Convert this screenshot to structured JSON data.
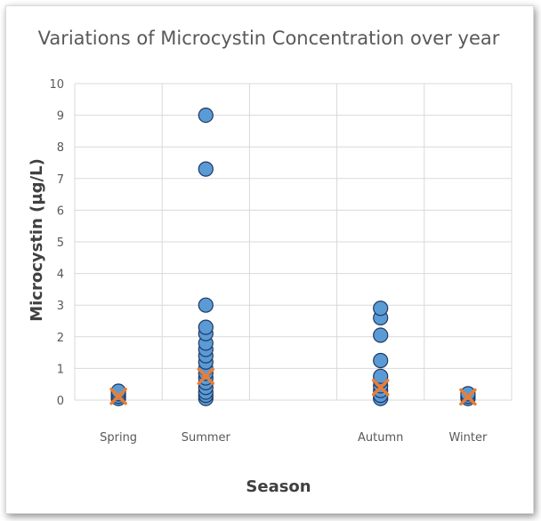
{
  "chart_data": {
    "type": "scatter",
    "title": "Variations of Microcystin Concentration over year",
    "xlabel": "Season",
    "ylabel": "Microcystin (µg/L)",
    "categories": [
      "Spring",
      "Summer",
      "Autumn",
      "Winter"
    ],
    "category_x": [
      1,
      2,
      4,
      5
    ],
    "xlim": [
      0.5,
      5.5
    ],
    "ylim": [
      0,
      10
    ],
    "yticks": [
      0,
      1,
      2,
      3,
      4,
      5,
      6,
      7,
      8,
      9,
      10
    ],
    "grid": true,
    "legend": "none",
    "series": [
      {
        "marker": "circle",
        "color": "#5b9bd5",
        "points": [
          {
            "x": 1,
            "y": 0.05
          },
          {
            "x": 1,
            "y": 0.12
          },
          {
            "x": 1,
            "y": 0.2
          },
          {
            "x": 1,
            "y": 0.28
          },
          {
            "x": 2,
            "y": 0.05
          },
          {
            "x": 2,
            "y": 0.15
          },
          {
            "x": 2,
            "y": 0.25
          },
          {
            "x": 2,
            "y": 0.4
          },
          {
            "x": 2,
            "y": 0.55
          },
          {
            "x": 2,
            "y": 0.7
          },
          {
            "x": 2,
            "y": 0.85
          },
          {
            "x": 2,
            "y": 1.0
          },
          {
            "x": 2,
            "y": 1.2
          },
          {
            "x": 2,
            "y": 1.4
          },
          {
            "x": 2,
            "y": 1.6
          },
          {
            "x": 2,
            "y": 1.8
          },
          {
            "x": 2,
            "y": 2.1
          },
          {
            "x": 2,
            "y": 2.3
          },
          {
            "x": 2,
            "y": 3.0
          },
          {
            "x": 2,
            "y": 7.3
          },
          {
            "x": 2,
            "y": 9.0
          },
          {
            "x": 4,
            "y": 0.05
          },
          {
            "x": 4,
            "y": 0.15
          },
          {
            "x": 4,
            "y": 0.3
          },
          {
            "x": 4,
            "y": 0.45
          },
          {
            "x": 4,
            "y": 0.6
          },
          {
            "x": 4,
            "y": 0.75
          },
          {
            "x": 4,
            "y": 1.25
          },
          {
            "x": 4,
            "y": 2.05
          },
          {
            "x": 4,
            "y": 2.6
          },
          {
            "x": 4,
            "y": 2.9
          },
          {
            "x": 5,
            "y": 0.05
          },
          {
            "x": 5,
            "y": 0.12
          },
          {
            "x": 5,
            "y": 0.2
          }
        ]
      },
      {
        "marker": "x",
        "color": "#ed7d31",
        "points": [
          {
            "x": 1,
            "y": 0.12
          },
          {
            "x": 2,
            "y": 0.75
          },
          {
            "x": 4,
            "y": 0.4
          },
          {
            "x": 5,
            "y": 0.1
          }
        ]
      }
    ]
  }
}
